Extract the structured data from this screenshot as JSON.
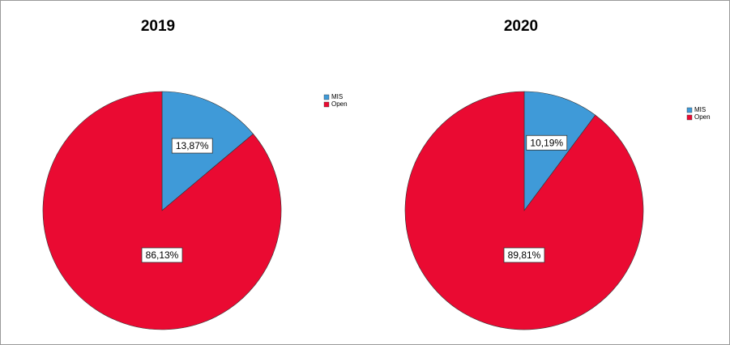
{
  "chart_data": [
    {
      "type": "pie",
      "title": "2019",
      "categories": [
        "MIS",
        "Open"
      ],
      "values": [
        13.87,
        86.13
      ],
      "value_labels": [
        "13,87%",
        "86,13%"
      ],
      "colors": [
        "#3f9ad8",
        "#ea0a32"
      ]
    },
    {
      "type": "pie",
      "title": "2020",
      "categories": [
        "MIS",
        "Open"
      ],
      "values": [
        10.19,
        89.81
      ],
      "value_labels": [
        "10,19%",
        "89,81%"
      ],
      "colors": [
        "#3f9ad8",
        "#ea0a32"
      ]
    }
  ]
}
